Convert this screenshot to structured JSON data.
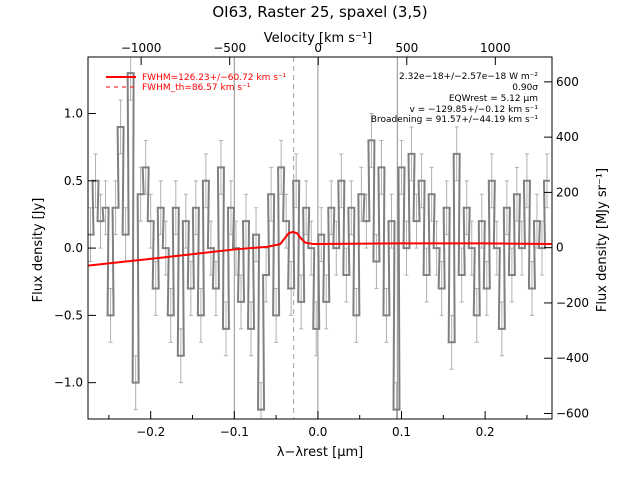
{
  "chart_data": {
    "type": "line",
    "title": "OI63, Raster 25, spaxel (3,5)",
    "xlabel": "λ−λrest [μm]",
    "ylabel": "Flux density [Jy]",
    "y2label": "Flux density [MJy sr⁻¹]",
    "x2label": "Velocity [km s⁻¹]",
    "xlim": [
      -0.275,
      0.28
    ],
    "ylim": [
      -1.27,
      1.42
    ],
    "y2lim": [
      -620,
      690
    ],
    "x2lim": [
      -1300,
      1320
    ],
    "xticks": [
      -0.2,
      -0.1,
      0.0,
      0.1,
      0.2
    ],
    "xticklabels": [
      "−0.2",
      "−0.1",
      "0.0",
      "0.1",
      "0.2"
    ],
    "yticks": [
      -1.0,
      -0.5,
      0.0,
      0.5,
      1.0
    ],
    "yticklabels": [
      "−1.0",
      "−0.5",
      "0.0",
      "0.5",
      "1.0"
    ],
    "y2ticks": [
      -600,
      -400,
      -200,
      0,
      200,
      400,
      600
    ],
    "y2ticklabels": [
      "−600",
      "−400",
      "−200",
      "0",
      "200",
      "400",
      "600"
    ],
    "x2ticks": [
      -1000,
      -500,
      0,
      500,
      1000
    ],
    "x2ticklabels": [
      "−1000",
      "−500",
      "0",
      "500",
      "1000"
    ],
    "vlines": [
      -0.1,
      0.0,
      0.095
    ],
    "dashed_vline": -0.029,
    "legend": [
      {
        "label": "FWHM=126.23+/−60.72 km s⁻¹",
        "color": "#ff0000",
        "style": "solid"
      },
      {
        "label": "FWHM_th=86.57 km s⁻¹",
        "color": "#ff0000",
        "style": "dashed"
      }
    ],
    "annotations": [
      "2.32e−18+/−2.57e−18 W m⁻²",
      "0.90σ",
      "EQWrest = 5.12 μm",
      "v = −129.85+/−0.12 km s⁻¹",
      "Broadening = 91.57+/−44.19 km s⁻¹"
    ],
    "series": [
      {
        "name": "data",
        "color": "#808080",
        "x": [
          -0.272,
          -0.266,
          -0.26,
          -0.254,
          -0.248,
          -0.242,
          -0.236,
          -0.23,
          -0.224,
          -0.218,
          -0.212,
          -0.206,
          -0.2,
          -0.194,
          -0.188,
          -0.182,
          -0.176,
          -0.17,
          -0.164,
          -0.158,
          -0.152,
          -0.146,
          -0.14,
          -0.134,
          -0.128,
          -0.122,
          -0.116,
          -0.11,
          -0.104,
          -0.098,
          -0.092,
          -0.086,
          -0.08,
          -0.074,
          -0.068,
          -0.062,
          -0.056,
          -0.05,
          -0.044,
          -0.038,
          -0.032,
          -0.026,
          -0.02,
          -0.014,
          -0.008,
          -0.002,
          0.004,
          0.01,
          0.016,
          0.022,
          0.028,
          0.034,
          0.04,
          0.046,
          0.052,
          0.058,
          0.064,
          0.07,
          0.076,
          0.082,
          0.088,
          0.094,
          0.1,
          0.106,
          0.112,
          0.118,
          0.124,
          0.13,
          0.136,
          0.142,
          0.148,
          0.154,
          0.16,
          0.166,
          0.172,
          0.178,
          0.184,
          0.19,
          0.196,
          0.202,
          0.208,
          0.214,
          0.22,
          0.226,
          0.232,
          0.238,
          0.244,
          0.25,
          0.256,
          0.262,
          0.268,
          0.274
        ],
        "y": [
          0.1,
          0.5,
          0.2,
          0.3,
          -0.5,
          0.3,
          0.9,
          0.1,
          1.3,
          -1.0,
          0.4,
          0.6,
          0.2,
          -0.3,
          0.3,
          0.0,
          -0.5,
          0.3,
          -0.8,
          0.2,
          -0.3,
          0.3,
          -0.5,
          0.5,
          0.0,
          -0.3,
          0.6,
          -0.6,
          0.3,
          0.0,
          -0.4,
          0.2,
          -0.6,
          0.1,
          -1.2,
          -0.2,
          0.4,
          -0.5,
          0.6,
          0.2,
          -0.3,
          0.5,
          -0.4,
          0.3,
          0.0,
          -0.6,
          0.1,
          -0.4,
          0.3,
          0.0,
          0.5,
          -0.2,
          0.3,
          -0.5,
          0.4,
          0.2,
          0.8,
          -0.1,
          0.6,
          -0.5,
          0.2,
          -1.2,
          0.6,
          0.0,
          0.7,
          0.2,
          0.5,
          -0.2,
          0.4,
          0.0,
          -0.3,
          0.3,
          -0.7,
          0.7,
          -0.2,
          0.3,
          0.0,
          -0.5,
          0.2,
          -0.3,
          0.5,
          0.0,
          -0.6,
          0.3,
          -0.2,
          0.4,
          0.0,
          0.5,
          -0.3,
          0.2,
          0.0,
          0.5
        ],
        "yerr": 0.2
      },
      {
        "name": "fit",
        "color": "#ff0000",
        "x": [
          -0.275,
          -0.2,
          -0.1,
          -0.06,
          -0.045,
          -0.04,
          -0.035,
          -0.03,
          -0.025,
          -0.02,
          -0.015,
          -0.005,
          0.0,
          0.1,
          0.2,
          0.28
        ],
        "y": [
          -0.13,
          -0.08,
          -0.01,
          0.01,
          0.03,
          0.07,
          0.11,
          0.12,
          0.11,
          0.07,
          0.04,
          0.03,
          0.03,
          0.035,
          0.035,
          0.03
        ]
      }
    ]
  }
}
